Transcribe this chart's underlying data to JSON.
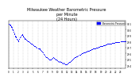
{
  "title": "Milwaukee Weather Barometric Pressure\nper Minute\n(24 Hours)",
  "title_fontsize": 3.5,
  "bg_color": "#ffffff",
  "dot_color": "#0000ff",
  "dot_size": 0.5,
  "legend_color": "#0000ff",
  "legend_label": "Barometric Pressure",
  "xlim": [
    0,
    1440
  ],
  "ylim": [
    29.35,
    30.15
  ],
  "yticks": [
    29.4,
    29.5,
    29.6,
    29.7,
    29.8,
    29.9,
    30.0,
    30.1
  ],
  "xtick_positions": [
    0,
    60,
    120,
    180,
    240,
    300,
    360,
    420,
    480,
    540,
    600,
    660,
    720,
    780,
    840,
    900,
    960,
    1020,
    1080,
    1140,
    1200,
    1260,
    1320,
    1380
  ],
  "xtick_labels": [
    "0",
    "1",
    "2",
    "3",
    "4",
    "5",
    "6",
    "7",
    "8",
    "9",
    "10",
    "11",
    "12",
    "13",
    "14",
    "15",
    "16",
    "17",
    "18",
    "19",
    "20",
    "21",
    "22",
    "23"
  ],
  "grid_color": "#aaaaaa",
  "data": [
    [
      0,
      30.1
    ],
    [
      5,
      30.1
    ],
    [
      10,
      30.09
    ],
    [
      15,
      30.09
    ],
    [
      20,
      30.08
    ],
    [
      25,
      30.07
    ],
    [
      30,
      30.06
    ],
    [
      35,
      30.05
    ],
    [
      40,
      30.04
    ],
    [
      45,
      30.02
    ],
    [
      50,
      30.01
    ],
    [
      55,
      29.99
    ],
    [
      60,
      29.97
    ],
    [
      65,
      29.96
    ],
    [
      70,
      29.94
    ],
    [
      75,
      29.92
    ],
    [
      80,
      29.9
    ],
    [
      85,
      29.89
    ],
    [
      90,
      29.88
    ],
    [
      95,
      29.87
    ],
    [
      100,
      29.85
    ],
    [
      110,
      29.83
    ],
    [
      115,
      29.82
    ],
    [
      120,
      29.8
    ],
    [
      130,
      29.84
    ],
    [
      140,
      29.87
    ],
    [
      150,
      29.89
    ],
    [
      160,
      29.91
    ],
    [
      165,
      29.92
    ],
    [
      170,
      29.91
    ],
    [
      175,
      29.9
    ],
    [
      180,
      29.88
    ],
    [
      190,
      29.87
    ],
    [
      195,
      29.86
    ],
    [
      200,
      29.85
    ],
    [
      210,
      29.84
    ],
    [
      220,
      29.83
    ],
    [
      230,
      29.82
    ],
    [
      240,
      29.81
    ],
    [
      250,
      29.8
    ],
    [
      260,
      29.79
    ],
    [
      270,
      29.78
    ],
    [
      280,
      29.77
    ],
    [
      290,
      29.76
    ],
    [
      300,
      29.75
    ],
    [
      310,
      29.74
    ],
    [
      320,
      29.73
    ],
    [
      330,
      29.72
    ],
    [
      340,
      29.71
    ],
    [
      350,
      29.7
    ],
    [
      360,
      29.69
    ],
    [
      370,
      29.68
    ],
    [
      380,
      29.67
    ],
    [
      385,
      29.68
    ],
    [
      390,
      29.66
    ],
    [
      400,
      29.65
    ],
    [
      410,
      29.63
    ],
    [
      420,
      29.61
    ],
    [
      430,
      29.59
    ],
    [
      440,
      29.57
    ],
    [
      450,
      29.55
    ],
    [
      460,
      29.54
    ],
    [
      470,
      29.53
    ],
    [
      480,
      29.52
    ],
    [
      490,
      29.51
    ],
    [
      500,
      29.5
    ],
    [
      510,
      29.49
    ],
    [
      520,
      29.5
    ],
    [
      530,
      29.51
    ],
    [
      540,
      29.52
    ],
    [
      550,
      29.53
    ],
    [
      560,
      29.52
    ],
    [
      570,
      29.51
    ],
    [
      580,
      29.5
    ],
    [
      590,
      29.49
    ],
    [
      600,
      29.48
    ],
    [
      610,
      29.47
    ],
    [
      620,
      29.46
    ],
    [
      630,
      29.47
    ],
    [
      640,
      29.46
    ],
    [
      650,
      29.45
    ],
    [
      660,
      29.44
    ],
    [
      670,
      29.43
    ],
    [
      680,
      29.44
    ],
    [
      690,
      29.43
    ],
    [
      700,
      29.42
    ],
    [
      710,
      29.41
    ],
    [
      720,
      29.42
    ],
    [
      730,
      29.43
    ],
    [
      740,
      29.44
    ],
    [
      750,
      29.45
    ],
    [
      760,
      29.46
    ],
    [
      770,
      29.47
    ],
    [
      780,
      29.48
    ],
    [
      790,
      29.5
    ],
    [
      800,
      29.51
    ],
    [
      810,
      29.52
    ],
    [
      820,
      29.53
    ],
    [
      830,
      29.54
    ],
    [
      840,
      29.55
    ],
    [
      850,
      29.55
    ],
    [
      860,
      29.56
    ],
    [
      870,
      29.57
    ],
    [
      880,
      29.58
    ],
    [
      890,
      29.59
    ],
    [
      900,
      29.6
    ],
    [
      910,
      29.6
    ],
    [
      920,
      29.61
    ],
    [
      930,
      29.62
    ],
    [
      940,
      29.62
    ],
    [
      950,
      29.63
    ],
    [
      960,
      29.63
    ],
    [
      970,
      29.64
    ],
    [
      980,
      29.65
    ],
    [
      990,
      29.65
    ],
    [
      1000,
      29.66
    ],
    [
      1010,
      29.66
    ],
    [
      1020,
      29.67
    ],
    [
      1030,
      29.67
    ],
    [
      1040,
      29.68
    ],
    [
      1050,
      29.68
    ],
    [
      1060,
      29.69
    ],
    [
      1070,
      29.69
    ],
    [
      1080,
      29.7
    ],
    [
      1090,
      29.7
    ],
    [
      1100,
      29.7
    ],
    [
      1110,
      29.71
    ],
    [
      1120,
      29.71
    ],
    [
      1130,
      29.72
    ],
    [
      1140,
      29.72
    ],
    [
      1150,
      29.73
    ],
    [
      1160,
      29.73
    ],
    [
      1170,
      29.74
    ],
    [
      1180,
      29.74
    ],
    [
      1190,
      29.74
    ],
    [
      1200,
      29.75
    ],
    [
      1210,
      29.75
    ],
    [
      1220,
      29.76
    ],
    [
      1230,
      29.76
    ],
    [
      1240,
      29.76
    ],
    [
      1250,
      29.77
    ],
    [
      1260,
      29.77
    ],
    [
      1270,
      29.77
    ],
    [
      1280,
      29.78
    ],
    [
      1290,
      29.78
    ],
    [
      1300,
      29.78
    ],
    [
      1310,
      29.78
    ],
    [
      1320,
      29.79
    ],
    [
      1330,
      29.79
    ],
    [
      1340,
      29.79
    ],
    [
      1350,
      29.79
    ],
    [
      1360,
      29.79
    ],
    [
      1370,
      29.79
    ],
    [
      1380,
      29.8
    ],
    [
      1390,
      29.8
    ],
    [
      1400,
      29.8
    ],
    [
      1410,
      29.8
    ],
    [
      1420,
      29.8
    ],
    [
      1430,
      29.8
    ],
    [
      1440,
      29.8
    ]
  ]
}
